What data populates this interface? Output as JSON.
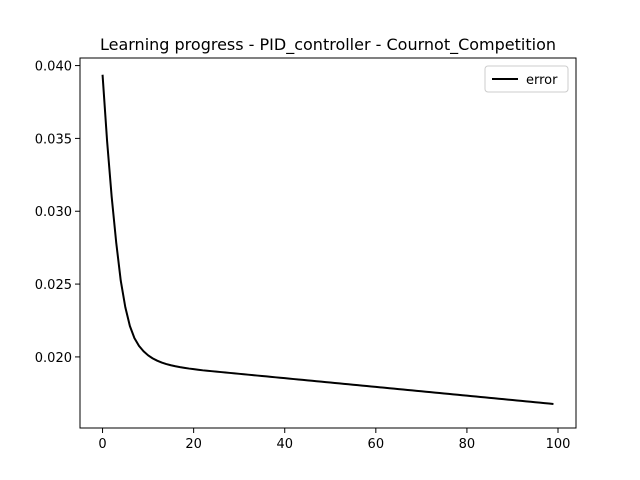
{
  "chart_data": {
    "type": "line",
    "title": "Learning progress - PID_controller - Cournot_Competition",
    "xlabel": "",
    "ylabel": "",
    "xlim": [
      -4.95,
      103.95
    ],
    "ylim": [
      0.01512,
      0.04052
    ],
    "x_ticks": [
      0,
      20,
      40,
      60,
      80,
      100
    ],
    "y_ticks": [
      0.02,
      0.025,
      0.03,
      0.035,
      0.04
    ],
    "x_tick_labels": [
      "0",
      "20",
      "40",
      "60",
      "80",
      "100"
    ],
    "y_tick_labels": [
      "0.020",
      "0.025",
      "0.030",
      "0.035",
      "0.040"
    ],
    "grid": false,
    "legend": {
      "placement": "top-right",
      "entries": [
        "error"
      ]
    },
    "series": [
      {
        "name": "error",
        "color": "#000000",
        "x": [
          0,
          1,
          2,
          3,
          4,
          5,
          6,
          7,
          8,
          9,
          10,
          11,
          12,
          13,
          14,
          15,
          16,
          17,
          18,
          19,
          20,
          21,
          22,
          23,
          24,
          25,
          26,
          27,
          28,
          29,
          30,
          31,
          32,
          33,
          34,
          35,
          36,
          37,
          38,
          39,
          40,
          41,
          42,
          43,
          44,
          45,
          46,
          47,
          48,
          49,
          50,
          51,
          52,
          53,
          54,
          55,
          56,
          57,
          58,
          59,
          60,
          61,
          62,
          63,
          64,
          65,
          66,
          67,
          68,
          69,
          70,
          71,
          72,
          73,
          74,
          75,
          76,
          77,
          78,
          79,
          80,
          81,
          82,
          83,
          84,
          85,
          86,
          87,
          88,
          89,
          90,
          91,
          92,
          93,
          94,
          95,
          96,
          97,
          98,
          99
        ],
        "y": [
          0.03937,
          0.03481,
          0.03101,
          0.02785,
          0.02523,
          0.02341,
          0.02212,
          0.02129,
          0.02076,
          0.02039,
          0.02011,
          0.0199,
          0.01974,
          0.01961,
          0.01951,
          0.01943,
          0.01936,
          0.0193,
          0.01925,
          0.0192,
          0.01916,
          0.01912,
          0.01908,
          0.01905,
          0.01902,
          0.01899,
          0.01896,
          0.01893,
          0.0189,
          0.01887,
          0.01884,
          0.01881,
          0.01878,
          0.01875,
          0.01872,
          0.01869,
          0.01866,
          0.01863,
          0.0186,
          0.01857,
          0.01854,
          0.01851,
          0.01848,
          0.01845,
          0.01842,
          0.01839,
          0.01836,
          0.01833,
          0.0183,
          0.01827,
          0.01824,
          0.01821,
          0.01818,
          0.01815,
          0.01812,
          0.01809,
          0.01806,
          0.01803,
          0.018,
          0.01797,
          0.01794,
          0.01791,
          0.01788,
          0.01785,
          0.01782,
          0.01779,
          0.01776,
          0.01773,
          0.0177,
          0.01767,
          0.01764,
          0.01761,
          0.01758,
          0.01755,
          0.01752,
          0.01749,
          0.01746,
          0.01743,
          0.0174,
          0.01737,
          0.01734,
          0.01731,
          0.01728,
          0.01725,
          0.01722,
          0.01719,
          0.01716,
          0.01713,
          0.0171,
          0.01707,
          0.01704,
          0.01701,
          0.01698,
          0.01695,
          0.01692,
          0.01689,
          0.01686,
          0.01683,
          0.0168,
          0.01677
        ]
      }
    ]
  }
}
